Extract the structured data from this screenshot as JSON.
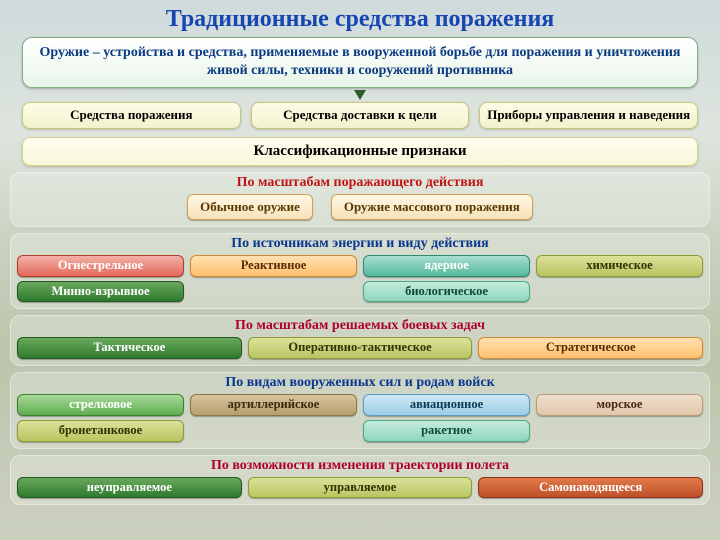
{
  "title": {
    "text": "Традиционные средства поражения",
    "color": "#1646b3"
  },
  "definition": {
    "text": "Оружие – устройства и средства, применяемые в вооруженной борьбе для поражения и уничтожения живой силы, техники и сооружений противника",
    "color": "#0a3a82"
  },
  "triple": [
    {
      "label": "Средства поражения"
    },
    {
      "label": "Средства доставки к цели"
    },
    {
      "label": "Приборы управления и наведения"
    }
  ],
  "class_header": "Классификационные признаки",
  "sections": [
    {
      "title": "По масштабам поражающего действия",
      "title_color": "#c01515",
      "inset": true,
      "rows": [
        [
          {
            "label": "Обычное оружие",
            "cls": "c-cream"
          },
          {
            "label": "Оружие массового поражения",
            "cls": "c-cream"
          }
        ]
      ]
    },
    {
      "title": "По источникам энергии и виду действия",
      "title_color": "#0a3890",
      "rows": [
        [
          {
            "label": "Огнестрельное",
            "cls": "c-red"
          },
          {
            "label": "Реактивное",
            "cls": "c-orange"
          },
          {
            "label": "ядерное",
            "cls": "c-teal"
          },
          {
            "label": "химическое",
            "cls": "c-olive"
          }
        ],
        [
          {
            "label": "Минно-взрывное",
            "cls": "c-dgreen"
          },
          {
            "label": "",
            "cls": "c-white",
            "empty": true
          },
          {
            "label": "биологическое",
            "cls": "c-sea"
          },
          {
            "label": "",
            "cls": "c-white",
            "empty": true
          }
        ]
      ]
    },
    {
      "title": "По масштабам решаемых боевых задач",
      "title_color": "#b00030",
      "rows": [
        [
          {
            "label": "Тактическое",
            "cls": "c-dgreen"
          },
          {
            "label": "Оперативно-тактическое",
            "cls": "c-olive"
          },
          {
            "label": "Стратегическое",
            "cls": "c-orange"
          }
        ]
      ]
    },
    {
      "title": "По видам вооруженных сил и родам войск",
      "title_color": "#0a3890",
      "rows": [
        [
          {
            "label": "стрелковое",
            "cls": "c-green"
          },
          {
            "label": "артиллерийское",
            "cls": "c-brown"
          },
          {
            "label": "авиационное",
            "cls": "c-sky"
          },
          {
            "label": "морское",
            "cls": "c-sand"
          }
        ],
        [
          {
            "label": "бронетанковое",
            "cls": "c-olive"
          },
          {
            "label": "",
            "cls": "c-white",
            "empty": true
          },
          {
            "label": "ракетное",
            "cls": "c-sea"
          },
          {
            "label": "",
            "cls": "c-white",
            "empty": true
          }
        ]
      ]
    },
    {
      "title": "По возможности изменения траектории полета",
      "title_color": "#b00030",
      "rows": [
        [
          {
            "label": "неуправляемое",
            "cls": "c-dgreen"
          },
          {
            "label": "управляемое",
            "cls": "c-olive"
          },
          {
            "label": "Самонаводящееся",
            "cls": "c-bred"
          }
        ]
      ]
    }
  ]
}
